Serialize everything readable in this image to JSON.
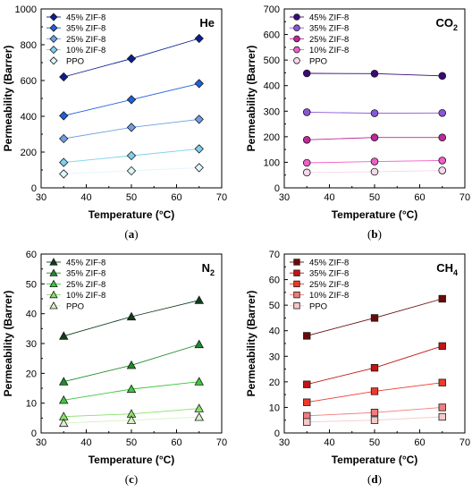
{
  "chart_data": [
    {
      "type": "scatter",
      "panel_label": "(a)",
      "gas_label": {
        "main": "He",
        "sub": ""
      },
      "xlabel": "Temperature (°C)",
      "ylabel": "Permeability (Barrer)",
      "xlim": [
        30,
        70
      ],
      "ylim": [
        0,
        1000
      ],
      "xticks": [
        30,
        40,
        50,
        60,
        70
      ],
      "yticks": [
        0,
        200,
        400,
        600,
        800,
        1000
      ],
      "marker": "diamond",
      "legend_position": "top-left",
      "series": [
        {
          "name": "45% ZIF-8",
          "color": "#0a1f8f",
          "x": [
            35,
            50,
            65
          ],
          "y": [
            620,
            722,
            835
          ]
        },
        {
          "name": "35% ZIF-8",
          "color": "#1f5fe0",
          "x": [
            35,
            50,
            65
          ],
          "y": [
            403,
            493,
            583
          ]
        },
        {
          "name": "25% ZIF-8",
          "color": "#6f9ee6",
          "x": [
            35,
            50,
            65
          ],
          "y": [
            275,
            338,
            383
          ]
        },
        {
          "name": "10% ZIF-8",
          "color": "#7fd0ee",
          "x": [
            35,
            50,
            65
          ],
          "y": [
            142,
            180,
            218
          ]
        },
        {
          "name": "PPO",
          "color": "#dff6fb",
          "x": [
            35,
            50,
            65
          ],
          "y": [
            78,
            95,
            113
          ]
        }
      ]
    },
    {
      "type": "scatter",
      "panel_label": "(b)",
      "gas_label": {
        "main": "CO",
        "sub": "2"
      },
      "xlabel": "Temperature (°C)",
      "ylabel": "Permeability (Barrer)",
      "xlim": [
        30,
        70
      ],
      "ylim": [
        0,
        700
      ],
      "xticks": [
        30,
        40,
        50,
        60,
        70
      ],
      "yticks": [
        0,
        100,
        200,
        300,
        400,
        500,
        600,
        700
      ],
      "marker": "circle",
      "legend_position": "top-left",
      "series": [
        {
          "name": "45% ZIF-8",
          "color": "#3a0a78",
          "x": [
            35,
            50,
            65
          ],
          "y": [
            448,
            447,
            438
          ]
        },
        {
          "name": "35% ZIF-8",
          "color": "#8a55d8",
          "x": [
            35,
            50,
            65
          ],
          "y": [
            296,
            292,
            293
          ]
        },
        {
          "name": "25% ZIF-8",
          "color": "#c0279a",
          "x": [
            35,
            50,
            65
          ],
          "y": [
            188,
            197,
            197
          ]
        },
        {
          "name": "10% ZIF-8",
          "color": "#f05ec8",
          "x": [
            35,
            50,
            65
          ],
          "y": [
            98,
            103,
            107
          ]
        },
        {
          "name": "PPO",
          "color": "#f6d8ea",
          "x": [
            35,
            50,
            65
          ],
          "y": [
            60,
            63,
            68
          ]
        }
      ]
    },
    {
      "type": "scatter",
      "panel_label": "(c)",
      "gas_label": {
        "main": "N",
        "sub": "2"
      },
      "xlabel": "Temperature (°C)",
      "ylabel": "Permeability (Barrer)",
      "xlim": [
        30,
        70
      ],
      "ylim": [
        0,
        60
      ],
      "xticks": [
        30,
        40,
        50,
        60,
        70
      ],
      "yticks": [
        0,
        10,
        20,
        30,
        40,
        50,
        60
      ],
      "marker": "triangle",
      "legend_position": "top-left",
      "series": [
        {
          "name": "45% ZIF-8",
          "color": "#0f3d1a",
          "x": [
            35,
            50,
            65
          ],
          "y": [
            32.5,
            39,
            44.5
          ]
        },
        {
          "name": "35% ZIF-8",
          "color": "#1f8a2a",
          "x": [
            35,
            50,
            65
          ],
          "y": [
            17.2,
            22.7,
            29.7
          ]
        },
        {
          "name": "25% ZIF-8",
          "color": "#3cc83c",
          "x": [
            35,
            50,
            65
          ],
          "y": [
            11,
            14.7,
            17.2
          ]
        },
        {
          "name": "10% ZIF-8",
          "color": "#88e06a",
          "x": [
            35,
            50,
            65
          ],
          "y": [
            5.5,
            6.4,
            8.2
          ]
        },
        {
          "name": "PPO",
          "color": "#d8f2c6",
          "x": [
            35,
            50,
            65
          ],
          "y": [
            3.3,
            4.3,
            5.3
          ]
        }
      ]
    },
    {
      "type": "scatter",
      "panel_label": "(d)",
      "gas_label": {
        "main": "CH",
        "sub": "4"
      },
      "xlabel": "Temperature (°C)",
      "ylabel": "Permeability (Barrer)",
      "xlim": [
        30,
        70
      ],
      "ylim": [
        0,
        70
      ],
      "xticks": [
        30,
        40,
        50,
        60,
        70
      ],
      "yticks": [
        0,
        10,
        20,
        30,
        40,
        50,
        60,
        70
      ],
      "marker": "square",
      "legend_position": "top-left",
      "series": [
        {
          "name": "45% ZIF-8",
          "color": "#6b0a0a",
          "x": [
            35,
            50,
            65
          ],
          "y": [
            38,
            45,
            52.5
          ]
        },
        {
          "name": "35% ZIF-8",
          "color": "#c21414",
          "x": [
            35,
            50,
            65
          ],
          "y": [
            19,
            25.5,
            34
          ]
        },
        {
          "name": "25% ZIF-8",
          "color": "#ee3a2a",
          "x": [
            35,
            50,
            65
          ],
          "y": [
            12,
            16.3,
            19.7
          ]
        },
        {
          "name": "10% ZIF-8",
          "color": "#f07c7c",
          "x": [
            35,
            50,
            65
          ],
          "y": [
            6.7,
            8,
            10
          ]
        },
        {
          "name": "PPO",
          "color": "#f6c8c8",
          "x": [
            35,
            50,
            65
          ],
          "y": [
            4.3,
            5,
            6.3
          ]
        }
      ]
    }
  ]
}
